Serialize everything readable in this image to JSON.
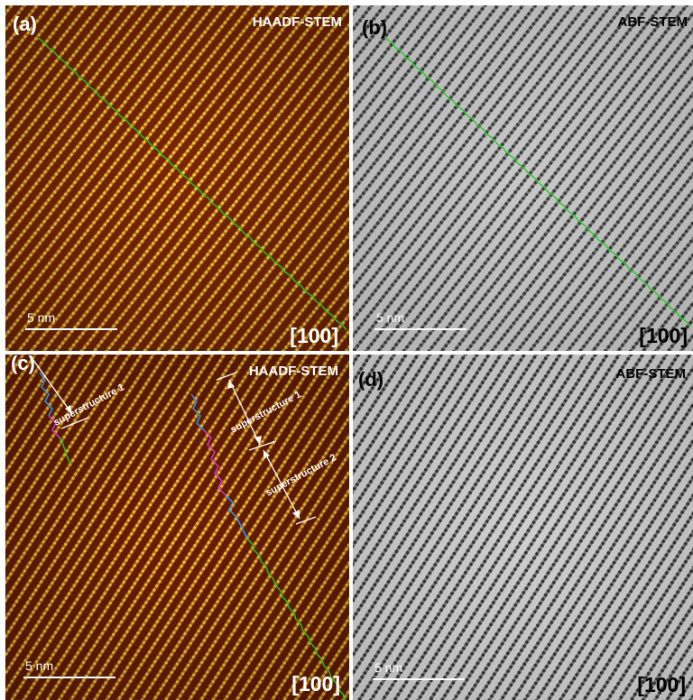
{
  "figure": {
    "panels": [
      {
        "id": "a",
        "label": "(a)",
        "technique": "HAADF-STEM",
        "zone_axis": "[100]",
        "scale_bar": "5 nm",
        "palette": "hot",
        "colors": {
          "background": "#7a2600",
          "lattice": "#ffcf40",
          "trace": "#22cc22"
        }
      },
      {
        "id": "b",
        "label": "(b)",
        "technique": "ABF-STEM",
        "zone_axis": "[100]",
        "scale_bar": "5 nm",
        "palette": "gray",
        "colors": {
          "background": "#c8c8c8",
          "lattice": "#3a3a3a",
          "trace": "#22cc22"
        }
      },
      {
        "id": "c",
        "label": "(c)",
        "technique": "HAADF-STEM",
        "zone_axis": "[100]",
        "scale_bar": "5 nm",
        "palette": "hot",
        "colors": {
          "background": "#6a1e00",
          "lattice": "#ffc838",
          "trace": "#22cc22",
          "trace_blue": "#3399ff",
          "trace_magenta": "#dd33dd"
        },
        "annotations": [
          "superstructure 1",
          "superstructure 1",
          "superstructure 2"
        ]
      },
      {
        "id": "d",
        "label": "(d)",
        "technique": "ABF-STEM",
        "zone_axis": "[100]",
        "scale_bar": "5 nm",
        "palette": "gray",
        "colors": {
          "background": "#cfcfcf",
          "lattice": "#333333"
        }
      }
    ]
  }
}
